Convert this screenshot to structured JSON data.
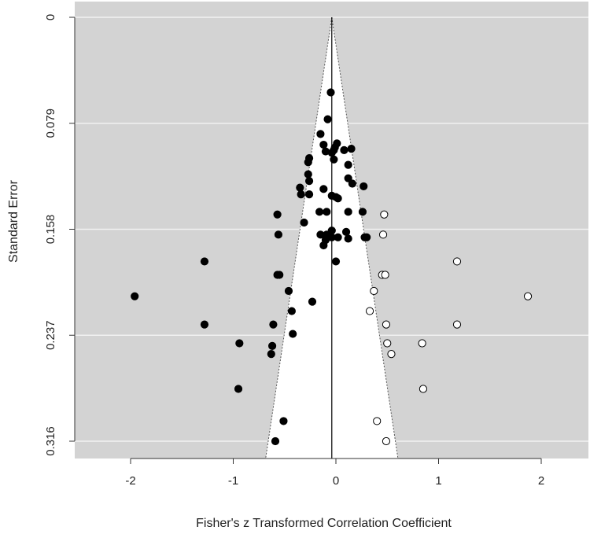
{
  "chart_data": {
    "type": "scatter",
    "title": "",
    "xlabel": "Fisher's z Transformed Correlation Coefficient",
    "ylabel": "Standard Error",
    "xlim": [
      -2.5,
      2.5
    ],
    "ylim": [
      0,
      0.316
    ],
    "y_reversed": true,
    "x_ticks": [
      "-2",
      "-1",
      "0",
      "1",
      "2"
    ],
    "x_tick_values": [
      -2,
      -1,
      0,
      1,
      2
    ],
    "y_ticks": [
      "0",
      "0.079",
      "0.158",
      "0.237",
      "0.316"
    ],
    "y_tick_values": [
      0,
      0.079,
      0.158,
      0.237,
      0.316
    ],
    "center_estimate": -0.04,
    "funnel_apex": 0,
    "grid": true,
    "colors": {
      "panel_background": "#d3d3d3",
      "funnel_fill": "#ffffff",
      "gridline": "#f2f2f2",
      "observed_point": "#000000",
      "imputed_point": "#ffffff",
      "point_outline": "#000000",
      "center_line": "#000000",
      "funnel_edge": "#555555"
    },
    "series": [
      {
        "kind": "observed",
        "points": [
          [
            -1.96,
            0.208
          ],
          [
            -1.28,
            0.182
          ],
          [
            -1.28,
            0.229
          ],
          [
            -0.94,
            0.243
          ],
          [
            -0.95,
            0.277
          ],
          [
            -0.57,
            0.147
          ],
          [
            -0.56,
            0.162
          ],
          [
            -0.57,
            0.192
          ],
          [
            -0.55,
            0.192
          ],
          [
            -0.46,
            0.204
          ],
          [
            -0.43,
            0.219
          ],
          [
            -0.42,
            0.236
          ],
          [
            -0.61,
            0.229
          ],
          [
            -0.62,
            0.245
          ],
          [
            -0.63,
            0.251
          ],
          [
            -0.51,
            0.301
          ],
          [
            -0.59,
            0.316
          ],
          [
            -0.31,
            0.153
          ],
          [
            -0.35,
            0.127
          ],
          [
            -0.34,
            0.132
          ],
          [
            -0.26,
            0.132
          ],
          [
            -0.26,
            0.122
          ],
          [
            -0.27,
            0.117
          ],
          [
            -0.27,
            0.108
          ],
          [
            -0.26,
            0.105
          ],
          [
            -0.23,
            0.212
          ],
          [
            -0.16,
            0.145
          ],
          [
            -0.15,
            0.087
          ],
          [
            -0.12,
            0.095
          ],
          [
            -0.08,
            0.076
          ],
          [
            -0.1,
            0.1
          ],
          [
            -0.05,
            0.056
          ],
          [
            -0.04,
            0.101
          ],
          [
            -0.02,
            0.099
          ],
          [
            -0.01,
            0.097
          ],
          [
            0.01,
            0.094
          ],
          [
            0.08,
            0.099
          ],
          [
            0.15,
            0.098
          ],
          [
            0.12,
            0.11
          ],
          [
            -0.02,
            0.106
          ],
          [
            0.12,
            0.12
          ],
          [
            0.16,
            0.124
          ],
          [
            0.27,
            0.126
          ],
          [
            -0.12,
            0.128
          ],
          [
            -0.04,
            0.133
          ],
          [
            0.0,
            0.134
          ],
          [
            0.02,
            0.135
          ],
          [
            -0.09,
            0.145
          ],
          [
            0.12,
            0.145
          ],
          [
            0.26,
            0.145
          ],
          [
            -0.15,
            0.162
          ],
          [
            -0.09,
            0.162
          ],
          [
            -0.1,
            0.166
          ],
          [
            -0.12,
            0.17
          ],
          [
            -0.04,
            0.159
          ],
          [
            -0.04,
            0.164
          ],
          [
            0.02,
            0.164
          ],
          [
            0.1,
            0.16
          ],
          [
            0.12,
            0.165
          ],
          [
            0.28,
            0.164
          ],
          [
            0.3,
            0.164
          ],
          [
            0.0,
            0.182
          ]
        ]
      },
      {
        "kind": "imputed",
        "points": [
          [
            0.47,
            0.147
          ],
          [
            0.46,
            0.162
          ],
          [
            0.45,
            0.192
          ],
          [
            0.48,
            0.192
          ],
          [
            0.37,
            0.204
          ],
          [
            0.33,
            0.219
          ],
          [
            0.49,
            0.229
          ],
          [
            0.5,
            0.243
          ],
          [
            0.54,
            0.251
          ],
          [
            0.84,
            0.243
          ],
          [
            0.85,
            0.277
          ],
          [
            1.18,
            0.182
          ],
          [
            1.18,
            0.229
          ],
          [
            1.87,
            0.208
          ],
          [
            0.4,
            0.301
          ],
          [
            0.49,
            0.316
          ]
        ]
      }
    ]
  }
}
